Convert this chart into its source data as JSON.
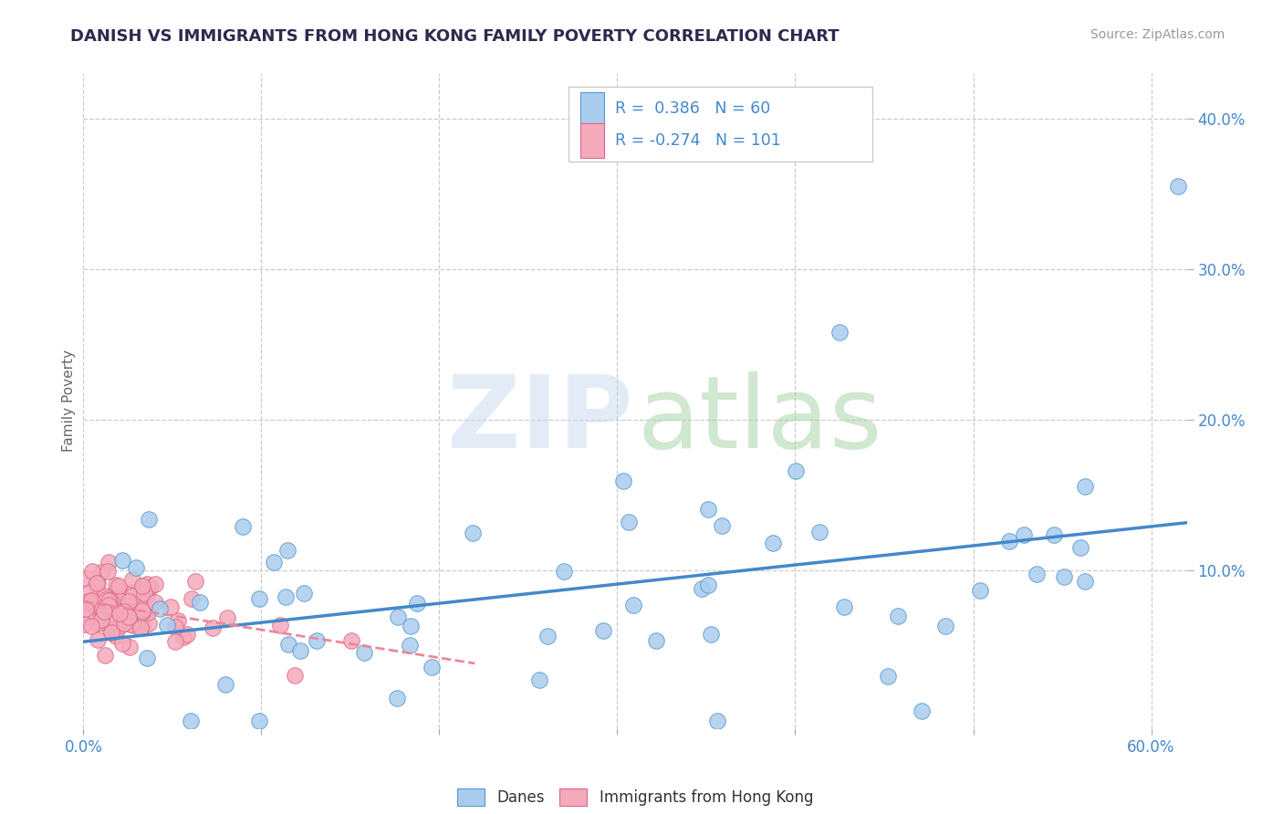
{
  "title": "DANISH VS IMMIGRANTS FROM HONG KONG FAMILY POVERTY CORRELATION CHART",
  "source_text": "Source: ZipAtlas.com",
  "ylabel": "Family Poverty",
  "xlim": [
    0.0,
    0.62
  ],
  "ylim": [
    -0.005,
    0.43
  ],
  "xticks": [
    0.0,
    0.1,
    0.2,
    0.3,
    0.4,
    0.5,
    0.6
  ],
  "xticklabels": [
    "0.0%",
    "",
    "",
    "",
    "",
    "",
    "60.0%"
  ],
  "yticks_right": [
    0.1,
    0.2,
    0.3,
    0.4
  ],
  "ytick_right_labels": [
    "10.0%",
    "20.0%",
    "30.0%",
    "40.0%"
  ],
  "r_danes": 0.386,
  "n_danes": 60,
  "r_hk": -0.274,
  "n_hk": 101,
  "color_danes_fill": "#aaccee",
  "color_danes_edge": "#5599cc",
  "color_hk_fill": "#f4aabb",
  "color_hk_edge": "#dd6688",
  "color_danes_line": "#4488cc",
  "color_hk_line": "#ee8899",
  "title_color": "#2b2b4e",
  "source_color": "#999999",
  "legend_r_color": "#4488cc",
  "tick_color": "#4488cc",
  "grid_color": "#cccccc",
  "background_color": "#ffffff"
}
